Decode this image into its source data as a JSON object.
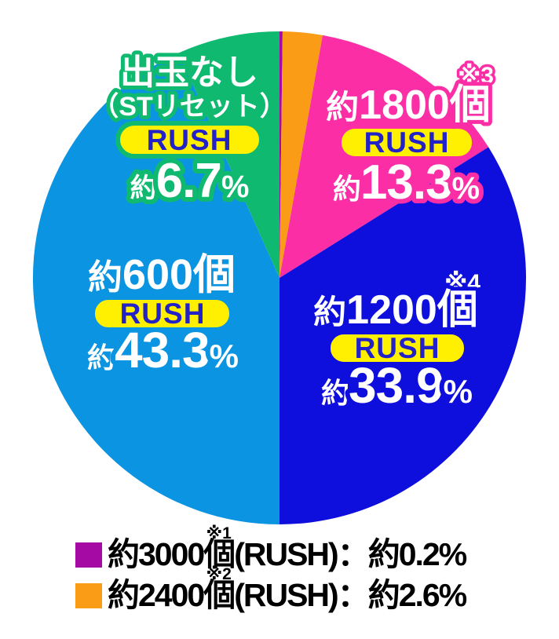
{
  "page": {
    "background": "#ffffff"
  },
  "chart_data": {
    "type": "pie",
    "title": "",
    "start_angle_deg": 0,
    "direction": "clockwise",
    "legend_position": "bottom",
    "slices": [
      {
        "label": "約3000個",
        "note": "※1",
        "badge": "RUSH",
        "percent": 0.2,
        "color": "#a50aa5"
      },
      {
        "label": "約2400個",
        "note": "※2",
        "badge": "RUSH",
        "percent": 2.6,
        "color": "#fa9c15"
      },
      {
        "label": "約1800個",
        "note": "※3",
        "badge": "RUSH",
        "percent": 13.3,
        "color": "#fb2ea6"
      },
      {
        "label": "約1200個",
        "note": "※4",
        "badge": "RUSH",
        "percent": 33.9,
        "color": "#0f0fdd"
      },
      {
        "label": "約600個",
        "note": "",
        "badge": "RUSH",
        "percent": 43.3,
        "color": "#0a94e1"
      },
      {
        "label": "出玉なし（STリセット）",
        "note": "",
        "badge": "RUSH",
        "percent": 6.7,
        "color": "#0fb96f"
      }
    ]
  },
  "style_colors": {
    "badge_bg": "#ffef00",
    "badge_text": "#2222c8",
    "legend_text": "#000000"
  },
  "pie_labels": {
    "green": {
      "line1": "出玉なし",
      "line2": "（STリセット）",
      "badge": "RUSH",
      "approx": "約",
      "value": "6.7",
      "unit": "%"
    },
    "pink": {
      "note": "※3",
      "approx": "約",
      "amount": "1800個",
      "badge": "RUSH",
      "p_approx": "約",
      "value": "13.3",
      "unit": "%"
    },
    "blue": {
      "note": "※4",
      "approx": "約",
      "amount": "1200個",
      "badge": "RUSH",
      "p_approx": "約",
      "value": "33.9",
      "unit": "%"
    },
    "lightblue": {
      "approx": "約",
      "amount": "600個",
      "badge": "RUSH",
      "p_approx": "約",
      "value": "43.3",
      "unit": "%"
    }
  },
  "legend": {
    "rows": [
      {
        "color": "#a50aa5",
        "amount": "約3000",
        "note": "※1",
        "unit": "個",
        "suffix": "(RUSH)：約0.2%"
      },
      {
        "color": "#fa9c15",
        "amount": "約2400",
        "note": "※2",
        "unit": "個",
        "suffix": "(RUSH)：約2.6%"
      }
    ]
  }
}
